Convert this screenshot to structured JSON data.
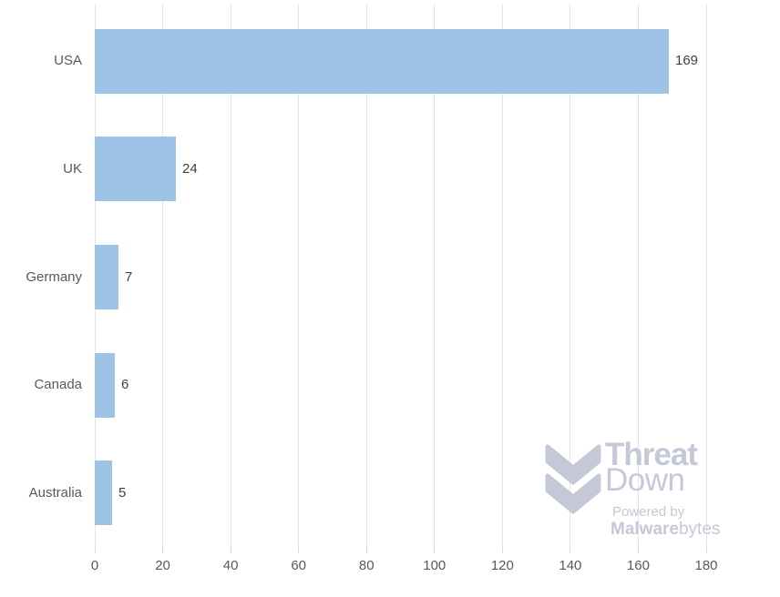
{
  "chart_data": {
    "type": "bar",
    "orientation": "horizontal",
    "title": "",
    "categories": [
      "USA",
      "UK",
      "Germany",
      "Canada",
      "Australia"
    ],
    "values": [
      169,
      24,
      7,
      6,
      5
    ],
    "value_labels": [
      "169",
      "24",
      "7",
      "6",
      "5"
    ],
    "xlabel": "",
    "ylabel": "",
    "xlim": [
      0,
      180
    ],
    "xticks": [
      0,
      20,
      40,
      60,
      80,
      100,
      120,
      140,
      160,
      180
    ],
    "grid": "vertical-only",
    "legend": "none",
    "colors": {
      "bar": "#9DC3E6",
      "gridline": "#E4E4E4",
      "tick_mark": "#D6D6D6",
      "category_label": "#595959",
      "value_label": "#404040",
      "tick_label": "#595959"
    }
  },
  "logo": {
    "line1": "Threat",
    "line2": "Down",
    "powered_by": "Powered by",
    "brand_bold": "Malware",
    "brand_regular": "bytes",
    "color": "#C5C8D6"
  }
}
